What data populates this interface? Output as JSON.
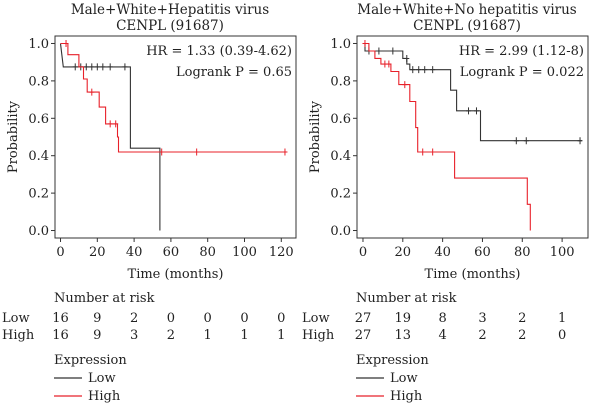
{
  "chart_data": [
    {
      "type": "line",
      "title": "Male+White+Hepatitis virus",
      "subtitle": "CENPL (91687)",
      "xlabel": "Time (months)",
      "ylabel": "Probability",
      "xlim": [
        -3,
        128
      ],
      "ylim": [
        -0.04,
        1.04
      ],
      "xticks": [
        "0",
        "20",
        "40",
        "60",
        "80",
        "100",
        "120"
      ],
      "yticks": [
        "0.0",
        "0.2",
        "0.4",
        "0.6",
        "0.8",
        "1.0"
      ],
      "hr_text": "HR = 1.33 (0.39-4.62)",
      "logrank_text": "Logrank P = 0.65",
      "series": [
        {
          "legend_key": "low",
          "color": "#333333",
          "steps": [
            [
              0,
              1.0
            ],
            [
              1.5,
              0.875
            ],
            [
              38,
              0.875
            ],
            [
              38,
              0.44
            ],
            [
              54,
              0.44
            ],
            [
              54,
              0.0
            ]
          ],
          "censors": [
            [
              8,
              0.875
            ],
            [
              11,
              0.875
            ],
            [
              14,
              0.875
            ],
            [
              17,
              0.875
            ],
            [
              20,
              0.875
            ],
            [
              23,
              0.875
            ],
            [
              27,
              0.875
            ],
            [
              35,
              0.875
            ]
          ]
        },
        {
          "legend_key": "high",
          "color": "#e8212a",
          "steps": [
            [
              0,
              1.0
            ],
            [
              4,
              1.0
            ],
            [
              4,
              0.94
            ],
            [
              10,
              0.94
            ],
            [
              10,
              0.875
            ],
            [
              12.5,
              0.875
            ],
            [
              12.5,
              0.81
            ],
            [
              14.5,
              0.81
            ],
            [
              14.5,
              0.74
            ],
            [
              21,
              0.74
            ],
            [
              21,
              0.66
            ],
            [
              24.5,
              0.66
            ],
            [
              24.5,
              0.57
            ],
            [
              31,
              0.57
            ],
            [
              31,
              0.5
            ],
            [
              31.5,
              0.5
            ],
            [
              31.5,
              0.42
            ],
            [
              123,
              0.42
            ]
          ],
          "censors": [
            [
              3,
              1.0
            ],
            [
              17,
              0.74
            ],
            [
              27,
              0.57
            ],
            [
              30,
              0.57
            ],
            [
              55,
              0.42
            ],
            [
              74,
              0.42
            ],
            [
              122,
              0.42
            ]
          ]
        }
      ],
      "risk_table": {
        "title": "Number at risk",
        "rows": [
          {
            "label": "Low",
            "values": [
              "16",
              "9",
              "2",
              "0",
              "0",
              "0",
              "0"
            ]
          },
          {
            "label": "High",
            "values": [
              "16",
              "9",
              "3",
              "2",
              "1",
              "1",
              "1"
            ]
          }
        ]
      }
    },
    {
      "type": "line",
      "title": "Male+White+No hepatitis virus",
      "subtitle": "CENPL (91687)",
      "xlabel": "Time (months)",
      "ylabel": "Probability",
      "xlim": [
        -3,
        113
      ],
      "ylim": [
        -0.04,
        1.04
      ],
      "xticks": [
        "0",
        "20",
        "40",
        "60",
        "80",
        "100"
      ],
      "yticks": [
        "0.0",
        "0.2",
        "0.4",
        "0.6",
        "0.8",
        "1.0"
      ],
      "hr_text": "HR = 2.99 (1.12-8)",
      "logrank_text": "Logrank P = 0.022",
      "series": [
        {
          "legend_key": "low",
          "color": "#333333",
          "steps": [
            [
              0,
              1.0
            ],
            [
              1,
              1.0
            ],
            [
              1,
              0.96
            ],
            [
              20,
              0.96
            ],
            [
              20,
              0.92
            ],
            [
              22,
              0.92
            ],
            [
              22,
              0.89
            ],
            [
              23.5,
              0.89
            ],
            [
              23.5,
              0.86
            ],
            [
              44,
              0.86
            ],
            [
              44,
              0.75
            ],
            [
              47,
              0.75
            ],
            [
              47,
              0.64
            ],
            [
              59,
              0.64
            ],
            [
              59,
              0.48
            ],
            [
              110,
              0.48
            ]
          ],
          "censors": [
            [
              3,
              0.96
            ],
            [
              8,
              0.96
            ],
            [
              15,
              0.96
            ],
            [
              22,
              0.92
            ],
            [
              25,
              0.86
            ],
            [
              28,
              0.86
            ],
            [
              31,
              0.86
            ],
            [
              35,
              0.86
            ],
            [
              53,
              0.64
            ],
            [
              57,
              0.64
            ],
            [
              77,
              0.48
            ],
            [
              82,
              0.48
            ],
            [
              109,
              0.48
            ]
          ]
        },
        {
          "legend_key": "high",
          "color": "#e8212a",
          "steps": [
            [
              0,
              1.0
            ],
            [
              3,
              1.0
            ],
            [
              3,
              0.96
            ],
            [
              6,
              0.96
            ],
            [
              6,
              0.92
            ],
            [
              9,
              0.92
            ],
            [
              9,
              0.89
            ],
            [
              14,
              0.89
            ],
            [
              14,
              0.85
            ],
            [
              18,
              0.85
            ],
            [
              18,
              0.78
            ],
            [
              23.5,
              0.78
            ],
            [
              23.5,
              0.69
            ],
            [
              26.5,
              0.69
            ],
            [
              26.5,
              0.55
            ],
            [
              27.5,
              0.55
            ],
            [
              27.5,
              0.42
            ],
            [
              46,
              0.42
            ],
            [
              46,
              0.28
            ],
            [
              82.5,
              0.28
            ],
            [
              82.5,
              0.14
            ],
            [
              84,
              0.14
            ],
            [
              84,
              0.0
            ]
          ],
          "censors": [
            [
              1,
              1.0
            ],
            [
              11,
              0.89
            ],
            [
              13,
              0.89
            ],
            [
              21,
              0.78
            ],
            [
              30,
              0.42
            ],
            [
              35,
              0.42
            ]
          ]
        }
      ],
      "risk_table": {
        "title": "Number at risk",
        "rows": [
          {
            "label": "Low",
            "values": [
              "27",
              "19",
              "8",
              "3",
              "2",
              "1"
            ]
          },
          {
            "label": "High",
            "values": [
              "27",
              "13",
              "4",
              "2",
              "2",
              "0"
            ]
          }
        ]
      }
    }
  ],
  "legend": {
    "title": "Expression",
    "items": [
      {
        "key": "low",
        "label": "Low",
        "color": "#333333"
      },
      {
        "key": "high",
        "label": "High",
        "color": "#e8212a"
      }
    ]
  }
}
